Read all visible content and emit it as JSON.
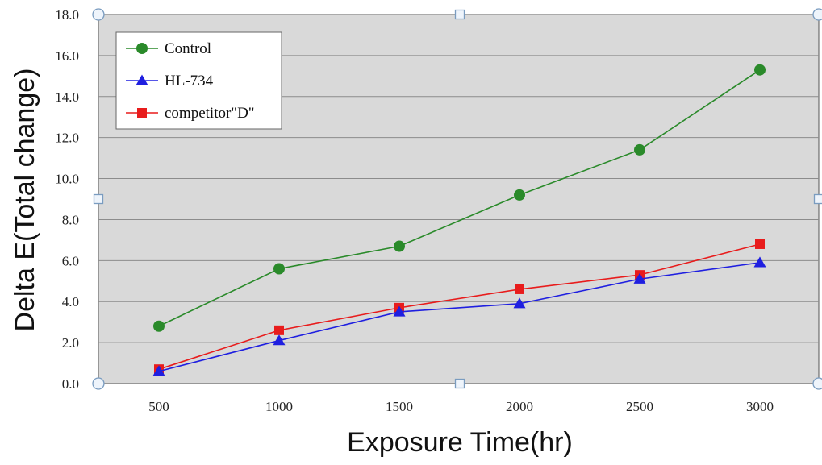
{
  "chart_data": {
    "type": "line",
    "title": "",
    "xlabel": "Exposure Time(hr)",
    "ylabel": "Delta E(Total change)",
    "categories": [
      "500",
      "1000",
      "1500",
      "2000",
      "2500",
      "3000"
    ],
    "ylim": [
      0,
      18
    ],
    "yticks": [
      "0.0",
      "2.0",
      "4.0",
      "6.0",
      "8.0",
      "10.0",
      "12.0",
      "14.0",
      "16.0",
      "18.0"
    ],
    "grid": true,
    "legend_position": "top-left",
    "series": [
      {
        "name": "Control",
        "values": [
          2.8,
          5.6,
          6.7,
          9.2,
          11.4,
          15.3
        ],
        "color": "#2a8a2a",
        "marker": "circle"
      },
      {
        "name": "HL-734",
        "values": [
          0.6,
          2.1,
          3.5,
          3.9,
          5.1,
          5.9
        ],
        "color": "#1f1fe0",
        "marker": "triangle"
      },
      {
        "name": "competitor\"D\"",
        "values": [
          0.7,
          2.6,
          3.7,
          4.6,
          5.3,
          6.8
        ],
        "color": "#e81c1c",
        "marker": "square"
      }
    ],
    "colors": {
      "plot_background": "#d9d9d9",
      "gridline": "#8c8c8c"
    }
  }
}
